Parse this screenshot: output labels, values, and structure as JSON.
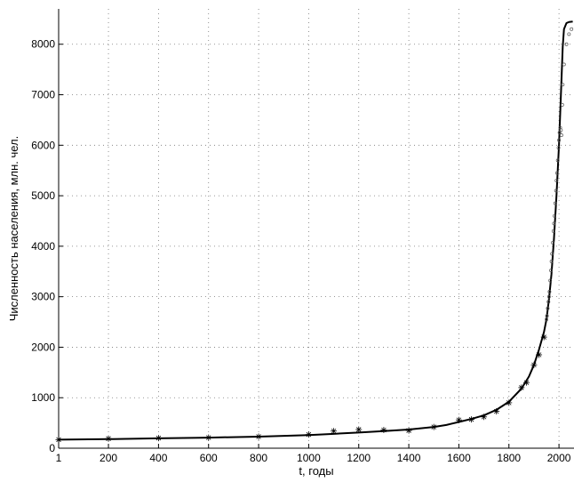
{
  "chart_data": {
    "type": "line",
    "xlabel": "t, годы",
    "ylabel": "Численность населения, млн. чел.",
    "xlim": [
      1,
      2060
    ],
    "ylim": [
      0,
      8700
    ],
    "xticks": [
      1,
      200,
      400,
      600,
      800,
      1000,
      1200,
      1400,
      1600,
      1800,
      2000
    ],
    "yticks": [
      0,
      1000,
      2000,
      3000,
      4000,
      5000,
      6000,
      7000,
      8000
    ],
    "grid": true,
    "legend": "none",
    "series": [
      {
        "kind": "line",
        "color": "#000000",
        "x": [
          1,
          200,
          400,
          600,
          800,
          1000,
          1100,
          1200,
          1300,
          1400,
          1500,
          1550,
          1600,
          1650,
          1700,
          1750,
          1800,
          1850,
          1880,
          1900,
          1920,
          1940,
          1950,
          1960,
          1970,
          1980,
          1990,
          2000,
          2005,
          2010,
          2015,
          2020,
          2030,
          2040,
          2055
        ],
        "y": [
          170,
          180,
          195,
          210,
          230,
          260,
          285,
          310,
          340,
          370,
          420,
          460,
          520,
          580,
          650,
          760,
          920,
          1180,
          1420,
          1650,
          1950,
          2300,
          2550,
          2950,
          3450,
          4150,
          5000,
          6000,
          6650,
          7300,
          7950,
          8300,
          8420,
          8440,
          8450
        ]
      },
      {
        "kind": "markers",
        "marker": "*",
        "color": "#000000",
        "x": [
          1,
          200,
          400,
          600,
          800,
          1000,
          1100,
          1200,
          1300,
          1400,
          1500,
          1600,
          1650,
          1700,
          1750,
          1800,
          1850,
          1870,
          1900,
          1920,
          1940
        ],
        "y": [
          170,
          190,
          200,
          210,
          230,
          270,
          340,
          370,
          360,
          350,
          420,
          560,
          570,
          620,
          730,
          900,
          1200,
          1300,
          1650,
          1850,
          2200
        ]
      },
      {
        "kind": "markers",
        "marker": "o",
        "color": "#555555",
        "x": [
          1950,
          1952,
          1955,
          1958,
          1960,
          1962,
          1965,
          1968,
          1970,
          1972,
          1975,
          1978,
          1980,
          1982,
          1985,
          1988,
          1990,
          1992,
          1995,
          1998,
          2000,
          2002,
          2005,
          2008,
          2010,
          2013,
          2015,
          2020,
          2030,
          2040,
          2050
        ],
        "y": [
          2550,
          2620,
          2770,
          2900,
          3000,
          3100,
          3320,
          3520,
          3700,
          3850,
          4070,
          4300,
          4450,
          4600,
          4850,
          5100,
          5300,
          5450,
          5700,
          5950,
          6100,
          6250,
          6350,
          6300,
          6200,
          6800,
          7200,
          7600,
          8000,
          8200,
          8300
        ]
      }
    ]
  }
}
